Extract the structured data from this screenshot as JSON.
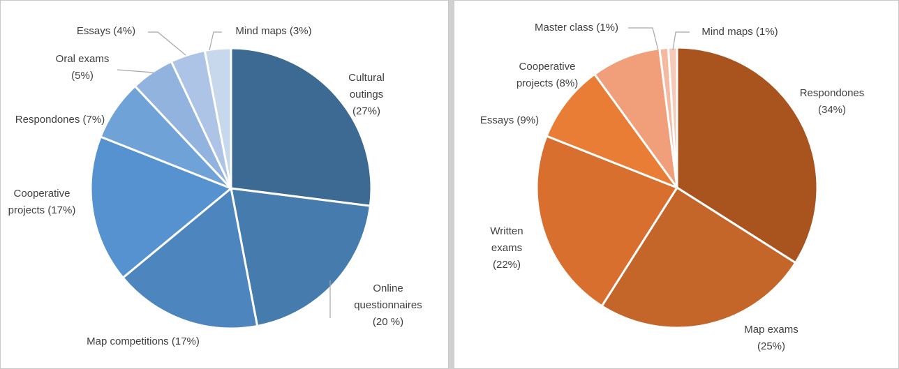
{
  "chart_data": [
    {
      "type": "pie",
      "categories": [
        "Cultural outings",
        "Online questionnaires",
        "Map competitions",
        "Cooperative projects",
        "Respondones",
        "Oral exams",
        "Essays",
        "Mind maps"
      ],
      "values": [
        27,
        20,
        17,
        17,
        7,
        5,
        4,
        3
      ],
      "value_labels": [
        "(27%)",
        "(20 %)",
        "(17%)",
        "(17%)",
        "(7%)",
        "(5%)",
        "(4%)",
        "(3%)"
      ],
      "colors": [
        "#3d6a93",
        "#467cad",
        "#4d85bf",
        "#5592cf",
        "#6fa3d8",
        "#92b3de",
        "#aec4e6",
        "#c7d7ec"
      ]
    },
    {
      "type": "pie",
      "categories": [
        "Respondones",
        "Map exams",
        "Written exams",
        "Essays",
        "Cooperative projects",
        "Master class",
        "Mind maps"
      ],
      "values": [
        34,
        25,
        22,
        9,
        8,
        1,
        1
      ],
      "value_labels": [
        "(34%)",
        "(25%)",
        "(22%)",
        "(9%)",
        "(8%)",
        "(1%)",
        "(1%)"
      ],
      "colors": [
        "#a9541f",
        "#c4652a",
        "#d96f2e",
        "#ea7d35",
        "#f09f7a",
        "#f4b9a1",
        "#f7c9b8"
      ]
    }
  ]
}
